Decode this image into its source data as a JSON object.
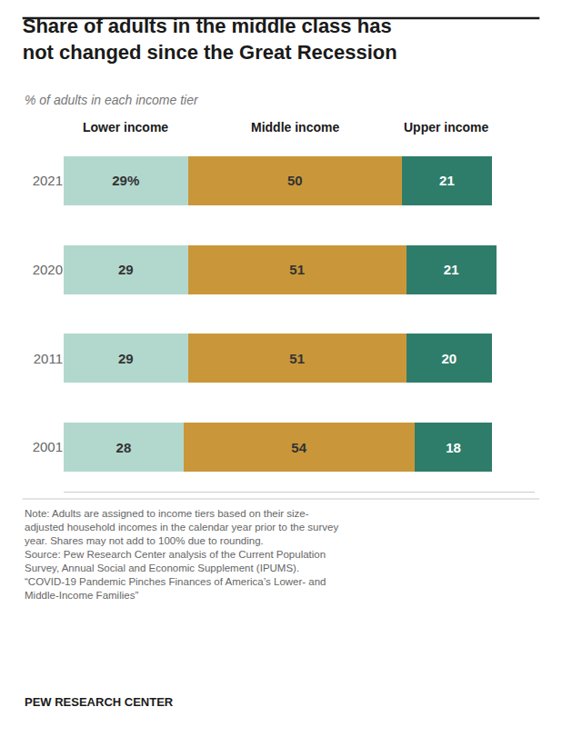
{
  "chart_data": {
    "type": "bar",
    "orientation": "horizontal",
    "stacked": true,
    "title": "Share of adults in the middle class has\nnot changed since the Great Recession",
    "subtitle": "% of adults in each income tier",
    "categories": [
      "2021",
      "2020",
      "2011",
      "2001"
    ],
    "series": [
      {
        "name": "Lower income",
        "color": "#b2d8ce",
        "values": [
          29,
          29,
          29,
          28
        ],
        "value_labels": [
          "29%",
          "29",
          "29",
          "28"
        ]
      },
      {
        "name": "Middle income",
        "color": "#c9973a",
        "values": [
          50,
          51,
          51,
          54
        ],
        "value_labels": [
          "50",
          "51",
          "51",
          "54"
        ]
      },
      {
        "name": "Upper income",
        "color": "#2e7d6a",
        "values": [
          21,
          21,
          20,
          18
        ],
        "value_labels": [
          "21",
          "21",
          "20",
          "18"
        ]
      }
    ],
    "xlim": [
      0,
      110
    ],
    "tick_labels": "y",
    "data_labels": true,
    "grid": false,
    "annotations": [
      "Note: Adults are assigned to income tiers based on their size-\nadjusted household incomes in the calendar year prior to the survey\nyear. Shares may not add to 100% due to rounding.\nSource: Pew Research Center analysis of the Current Population\nSurvey, Annual Social and Economic Supplement (IPUMS).\n“COVID-19 Pandemic Pinches Finances of America’s Lower- and\nMiddle-Income Families”",
      "PEW RESEARCH CENTER"
    ]
  }
}
